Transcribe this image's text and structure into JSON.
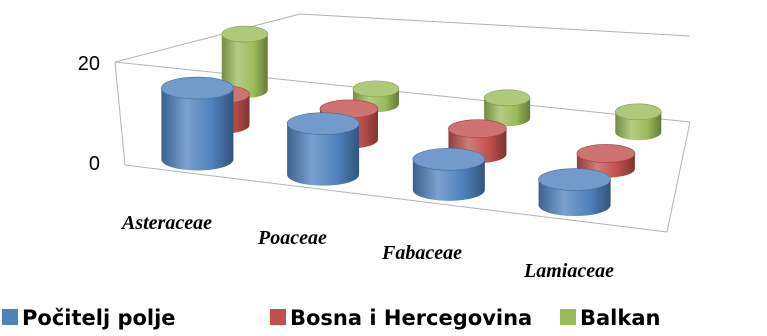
{
  "chart_data": {
    "type": "bar",
    "categories": [
      "Asteraceae",
      "Poaceae",
      "Fabaceae",
      "Lamiaceae"
    ],
    "series": [
      {
        "name": "Počitelj polje",
        "values": [
          14,
          10,
          6,
          5
        ],
        "color": "#4F81BD"
      },
      {
        "name": "Bosna i Hercegovina",
        "values": [
          6,
          6,
          5,
          3
        ],
        "color": "#C0504D"
      },
      {
        "name": "Balkan",
        "values": [
          11,
          3,
          4,
          4
        ],
        "color": "#9BBB59"
      }
    ],
    "yticks": [
      0,
      20
    ],
    "ylim": [
      0,
      20
    ],
    "grid": true,
    "legend_position": "bottom"
  }
}
